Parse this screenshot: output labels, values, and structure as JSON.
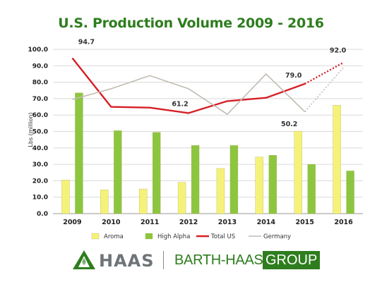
{
  "chart_data": {
    "type": "bar",
    "title": "U.S. Production Volume 2009 - 2016",
    "ylabel": "Lbs (million)",
    "xlabel": "",
    "ylim": [
      0,
      100
    ],
    "yticks": [
      "0.0",
      "10.0",
      "20.0",
      "30.0",
      "40.0",
      "50.0",
      "60.0",
      "70.0",
      "80.0",
      "90.0",
      "100.0"
    ],
    "categories": [
      "2009",
      "2010",
      "2011",
      "2012",
      "2013",
      "2014",
      "2015",
      "2016"
    ],
    "grid": true,
    "legend_position": "bottom",
    "series": [
      {
        "name": "Aroma",
        "type": "bar",
        "color": "#f5f27a",
        "values": [
          20.5,
          14.5,
          15.0,
          19.0,
          27.5,
          34.5,
          50.2,
          66.0
        ]
      },
      {
        "name": "High Alpha",
        "type": "bar",
        "color": "#8cc63f",
        "values": [
          73.5,
          50.5,
          49.5,
          41.5,
          41.5,
          35.5,
          30.0,
          26.0
        ]
      },
      {
        "name": "Total US",
        "type": "line",
        "color": "#d61f26",
        "values": [
          94.7,
          65.0,
          64.5,
          61.2,
          68.5,
          70.5,
          79.0,
          92.0
        ],
        "dotted_last_segment": true
      },
      {
        "name": "Germany",
        "type": "line",
        "color": "#c2bcb2",
        "values": [
          69.5,
          76.0,
          84.0,
          76.0,
          60.5,
          85.0,
          62.0,
          89.0
        ],
        "dotted_last_segment": true
      }
    ],
    "data_labels": [
      {
        "text": "94.7",
        "category": "2009",
        "value": 94.7
      },
      {
        "text": "61.2",
        "category": "2012",
        "value": 61.2
      },
      {
        "text": "79.0",
        "category": "2015",
        "value": 79.0
      },
      {
        "text": "92.0",
        "category": "2016",
        "value": 92.0
      },
      {
        "text": "50.2",
        "category": "2015",
        "value": 50.2
      }
    ]
  },
  "logos": {
    "haas": "HAAS",
    "barth_haas": "BARTH-HAAS",
    "group": "GROUP"
  },
  "colors": {
    "title": "#2e7d1e",
    "brand_green": "#2e7d1e",
    "gray": "#6e7478"
  }
}
